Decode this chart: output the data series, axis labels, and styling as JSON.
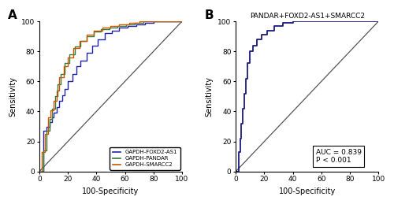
{
  "panel_A_label": "A",
  "panel_B_label": "B",
  "xlabel": "100-Specificity",
  "ylabel": "Sensitivity",
  "xlim": [
    0,
    100
  ],
  "ylim": [
    0,
    100
  ],
  "xticks": [
    0,
    20,
    40,
    60,
    80,
    100
  ],
  "yticks": [
    0,
    20,
    40,
    60,
    80,
    100
  ],
  "title_B": "PANDAR+FOXD2-AS1+SMARCC2",
  "auc_text": "AUC = 0.839\nP < 0.001",
  "legend_entries": [
    "GAPDH-FOXD2-AS1",
    "GAPDH-PANDAR",
    "GAPDH-SMARCC2"
  ],
  "colors": {
    "foxd2": "#2222aa",
    "pandar": "#2e7d32",
    "smarcc2": "#cc5500",
    "combined": "#1a1a7e",
    "diagonal": "#555555"
  },
  "background_color": "#ffffff",
  "foxd2_x": [
    0,
    3,
    3,
    5,
    5,
    7,
    7,
    9,
    9,
    10,
    10,
    12,
    12,
    14,
    14,
    16,
    16,
    18,
    18,
    20,
    20,
    23,
    23,
    26,
    26,
    29,
    29,
    33,
    33,
    37,
    37,
    41,
    41,
    46,
    46,
    51,
    51,
    56,
    56,
    62,
    62,
    68,
    68,
    74,
    74,
    80,
    80,
    86,
    86,
    92,
    92,
    97,
    97,
    100
  ],
  "foxd2_y": [
    0,
    0,
    27,
    27,
    30,
    30,
    33,
    33,
    36,
    36,
    39,
    39,
    43,
    43,
    47,
    47,
    51,
    51,
    55,
    55,
    60,
    60,
    65,
    65,
    70,
    70,
    74,
    74,
    79,
    79,
    84,
    84,
    88,
    88,
    92,
    92,
    94,
    94,
    96,
    96,
    97,
    97,
    98,
    98,
    99,
    99,
    100,
    100,
    100,
    100,
    100,
    100,
    100,
    100
  ],
  "pandar_x": [
    0,
    3,
    3,
    5,
    5,
    7,
    7,
    9,
    9,
    11,
    11,
    13,
    13,
    15,
    15,
    18,
    18,
    21,
    21,
    25,
    25,
    29,
    29,
    33,
    33,
    38,
    38,
    43,
    43,
    49,
    49,
    55,
    55,
    61,
    61,
    67,
    67,
    73,
    73,
    79,
    79,
    85,
    85,
    91,
    91,
    97,
    97,
    100
  ],
  "pandar_y": [
    0,
    0,
    14,
    14,
    27,
    27,
    35,
    35,
    42,
    42,
    50,
    50,
    58,
    58,
    65,
    65,
    72,
    72,
    78,
    78,
    83,
    83,
    87,
    87,
    90,
    90,
    93,
    93,
    95,
    95,
    96,
    96,
    97,
    97,
    98,
    98,
    99,
    99,
    100,
    100,
    100,
    100,
    100,
    100,
    100,
    100,
    100,
    100
  ],
  "smarcc2_x": [
    0,
    2,
    2,
    4,
    4,
    6,
    6,
    8,
    8,
    10,
    10,
    12,
    12,
    14,
    14,
    17,
    17,
    20,
    20,
    24,
    24,
    28,
    28,
    33,
    33,
    38,
    38,
    44,
    44,
    50,
    50,
    56,
    56,
    63,
    63,
    70,
    70,
    77,
    77,
    84,
    84,
    91,
    91,
    97,
    97,
    100
  ],
  "smarcc2_y": [
    0,
    0,
    13,
    13,
    25,
    25,
    36,
    36,
    41,
    41,
    47,
    47,
    54,
    54,
    63,
    63,
    70,
    70,
    76,
    76,
    82,
    82,
    87,
    87,
    91,
    91,
    94,
    94,
    96,
    96,
    97,
    97,
    98,
    98,
    99,
    99,
    100,
    100,
    100,
    100,
    100,
    100,
    100,
    100,
    100,
    100
  ],
  "combined_x": [
    0,
    2,
    2,
    3,
    3,
    4,
    4,
    5,
    5,
    6,
    6,
    7,
    7,
    8,
    8,
    10,
    10,
    12,
    12,
    15,
    15,
    18,
    18,
    22,
    22,
    27,
    27,
    33,
    33,
    40,
    40,
    48,
    48,
    57,
    57,
    67,
    67,
    78,
    78,
    89,
    89,
    95,
    95,
    100
  ],
  "combined_y": [
    0,
    0,
    13,
    13,
    22,
    22,
    32,
    32,
    42,
    42,
    52,
    52,
    62,
    62,
    72,
    72,
    80,
    80,
    84,
    84,
    88,
    88,
    91,
    91,
    94,
    94,
    97,
    97,
    99,
    99,
    100,
    100,
    100,
    100,
    100,
    100,
    100,
    100,
    100,
    100,
    100,
    100,
    100,
    100
  ]
}
